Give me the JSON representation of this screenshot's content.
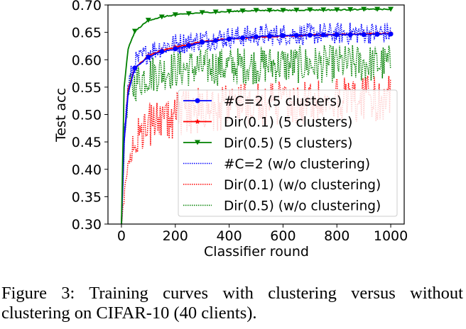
{
  "chart_data": {
    "type": "line",
    "title": "",
    "xlabel": "Classifier round",
    "ylabel": "Test acc",
    "xlim": [
      -50,
      1050
    ],
    "ylim": [
      0.3,
      0.7
    ],
    "xticks": [
      0,
      200,
      400,
      600,
      800,
      1000
    ],
    "xtick_labels": [
      "0",
      "200",
      "400",
      "600",
      "800",
      "1000"
    ],
    "yticks": [
      0.3,
      0.35,
      0.4,
      0.45,
      0.5,
      0.55,
      0.6,
      0.65,
      0.7
    ],
    "ytick_labels": [
      "0.30",
      "0.35",
      "0.40",
      "0.45",
      "0.50",
      "0.55",
      "0.60",
      "0.65",
      "0.70"
    ],
    "grid": false,
    "legend_position": "lower-right",
    "x": [
      0,
      10,
      25,
      50,
      100,
      150,
      200,
      300,
      400,
      500,
      600,
      700,
      800,
      900,
      1000
    ],
    "series": [
      {
        "name": "#C=2 (5 clusters)",
        "color": "#0000ff",
        "style": "solid",
        "marker": "circle",
        "values": [
          0.3,
          0.45,
          0.54,
          0.585,
          0.605,
          0.615,
          0.62,
          0.632,
          0.638,
          0.642,
          0.644,
          0.645,
          0.646,
          0.646,
          0.647
        ]
      },
      {
        "name": "Dir(0.1) (5 clusters)",
        "color": "#ff0000",
        "style": "solid",
        "marker": "star",
        "values": [
          0.3,
          0.45,
          0.545,
          0.585,
          0.607,
          0.617,
          0.623,
          0.633,
          0.638,
          0.641,
          0.643,
          0.645,
          0.646,
          0.647,
          0.648
        ]
      },
      {
        "name": "Dir(0.5) (5 clusters)",
        "color": "#008000",
        "style": "solid",
        "marker": "triangle-down",
        "values": [
          0.3,
          0.55,
          0.62,
          0.652,
          0.672,
          0.678,
          0.682,
          0.686,
          0.688,
          0.69,
          0.69,
          0.691,
          0.691,
          0.692,
          0.692
        ]
      },
      {
        "name": "#C=2 (w/o clustering)",
        "color": "#0000ff",
        "style": "dotted",
        "marker": "none",
        "values": [
          0.3,
          0.46,
          0.55,
          0.59,
          0.61,
          0.62,
          0.625,
          0.632,
          0.637,
          0.64,
          0.642,
          0.643,
          0.644,
          0.645,
          0.645
        ]
      },
      {
        "name": "Dir(0.1) (w/o clustering)",
        "color": "#ff0000",
        "style": "dotted",
        "marker": "none",
        "values": [
          0.3,
          0.36,
          0.42,
          0.47,
          0.5,
          0.51,
          0.52,
          0.53,
          0.535,
          0.54,
          0.54,
          0.545,
          0.545,
          0.55,
          0.55
        ]
      },
      {
        "name": "Dir(0.5) (w/o clustering)",
        "color": "#008000",
        "style": "dotted",
        "marker": "none",
        "values": [
          0.3,
          0.45,
          0.54,
          0.565,
          0.58,
          0.585,
          0.59,
          0.593,
          0.595,
          0.597,
          0.598,
          0.598,
          0.6,
          0.6,
          0.6
        ]
      }
    ]
  },
  "caption": {
    "line1": "Figure 3: Training curves with clustering versus without",
    "line2": "clustering on CIFAR-10 (40 clients)."
  }
}
